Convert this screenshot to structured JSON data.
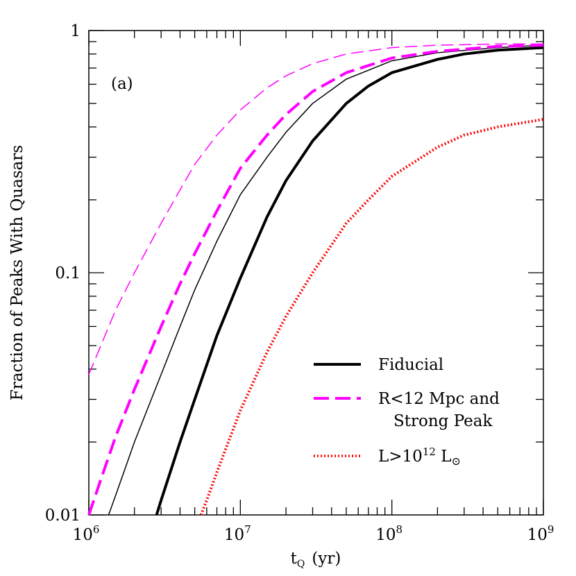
{
  "chart_data": {
    "type": "line",
    "title": "",
    "panel_label": "(a)",
    "xlabel": "t",
    "xlabel_sub": "Q",
    "xlabel_unit": "(yr)",
    "ylabel": "Fraction of Peaks With Quasars",
    "xscale": "log",
    "yscale": "log",
    "xlim": [
      1000000,
      1000000000
    ],
    "ylim": [
      0.01,
      1
    ],
    "x_ticks": [
      {
        "base": "10",
        "exp": "6",
        "value": 1000000
      },
      {
        "base": "10",
        "exp": "7",
        "value": 10000000
      },
      {
        "base": "10",
        "exp": "8",
        "value": 100000000
      },
      {
        "base": "10",
        "exp": "9",
        "value": 1000000000
      }
    ],
    "y_ticks": [
      {
        "label": "0.01",
        "value": 0.01
      },
      {
        "label": "0.1",
        "value": 0.1
      },
      {
        "label": "1",
        "value": 1
      }
    ],
    "legend_position": "lower-right",
    "legend": [
      {
        "series": "Fiducial",
        "lines": [
          "Fiducial"
        ]
      },
      {
        "series": "R<12 Mpc and Strong Peak",
        "lines": [
          "R<12 Mpc and",
          "Strong Peak"
        ]
      },
      {
        "series": "L>10^12 L_sun",
        "lines": [
          "L>10",
          "12",
          " L",
          "⊙"
        ]
      }
    ],
    "series": [
      {
        "name": "Fiducial",
        "color": "#000000",
        "style": "solid",
        "weight": "thick",
        "x": [
          2800000,
          3000000,
          4000000,
          5000000,
          7000000,
          10000000,
          15000000,
          20000000,
          30000000,
          50000000,
          70000000,
          100000000,
          200000000,
          300000000,
          500000000,
          1000000000
        ],
        "y": [
          0.01,
          0.0115,
          0.02,
          0.03,
          0.055,
          0.095,
          0.17,
          0.24,
          0.35,
          0.5,
          0.59,
          0.67,
          0.76,
          0.8,
          0.83,
          0.85
        ]
      },
      {
        "name": "",
        "color": "#000000",
        "style": "solid",
        "weight": "thin",
        "x": [
          1350000,
          1500000,
          2000000,
          3000000,
          4000000,
          5000000,
          7000000,
          10000000,
          15000000,
          20000000,
          30000000,
          50000000,
          100000000,
          200000000,
          500000000,
          1000000000
        ],
        "y": [
          0.01,
          0.012,
          0.02,
          0.038,
          0.06,
          0.085,
          0.135,
          0.21,
          0.3,
          0.38,
          0.5,
          0.63,
          0.75,
          0.81,
          0.85,
          0.87
        ]
      },
      {
        "name": "R<12 Mpc and Strong Peak",
        "color": "#ff00ff",
        "style": "dashed",
        "weight": "thick",
        "x": [
          1000000,
          1200000,
          1500000,
          2000000,
          3000000,
          4000000,
          5000000,
          7000000,
          10000000,
          15000000,
          20000000,
          30000000,
          50000000,
          100000000,
          200000000,
          500000000,
          1000000000
        ],
        "y": [
          0.01,
          0.014,
          0.021,
          0.033,
          0.06,
          0.09,
          0.12,
          0.18,
          0.27,
          0.37,
          0.45,
          0.56,
          0.67,
          0.77,
          0.82,
          0.86,
          0.87
        ]
      },
      {
        "name": "",
        "color": "#ff00ff",
        "style": "dashed",
        "weight": "thin",
        "x": [
          1000000,
          1200000,
          1500000,
          2000000,
          3000000,
          4000000,
          5000000,
          7000000,
          10000000,
          15000000,
          20000000,
          30000000,
          50000000,
          100000000,
          200000000,
          500000000,
          1000000000
        ],
        "y": [
          0.038,
          0.05,
          0.07,
          0.1,
          0.16,
          0.22,
          0.28,
          0.37,
          0.47,
          0.58,
          0.65,
          0.73,
          0.8,
          0.85,
          0.87,
          0.88,
          0.88
        ]
      },
      {
        "name": "L>10^12 L_sun",
        "color": "#ff0000",
        "style": "dotted",
        "weight": "thick",
        "x": [
          5500000,
          6000000,
          7000000,
          10000000,
          15000000,
          20000000,
          30000000,
          50000000,
          70000000,
          100000000,
          200000000,
          300000000,
          500000000,
          1000000000
        ],
        "y": [
          0.01,
          0.0115,
          0.015,
          0.027,
          0.047,
          0.066,
          0.1,
          0.16,
          0.2,
          0.25,
          0.33,
          0.37,
          0.4,
          0.43
        ]
      }
    ]
  }
}
